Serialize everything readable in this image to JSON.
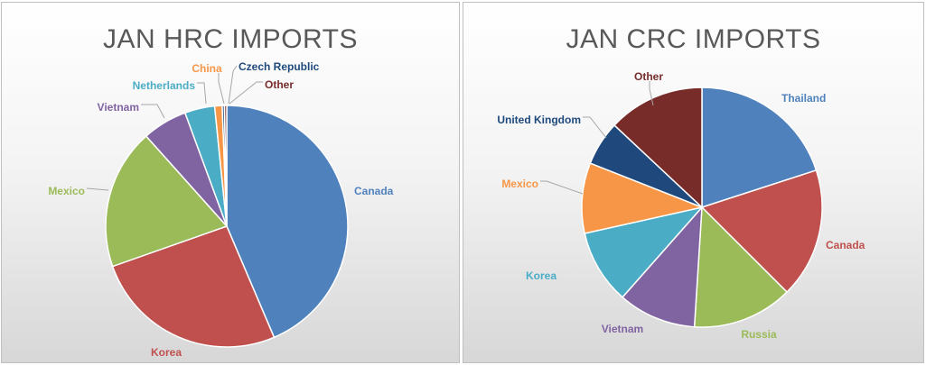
{
  "chart_data": [
    {
      "type": "pie",
      "title": "JAN HRC IMPORTS",
      "categories": [
        "Canada",
        "Korea",
        "Mexico",
        "Vietnam",
        "Netherlands",
        "China",
        "Czech Republic",
        "Other"
      ],
      "values": [
        43.6,
        26.0,
        18.8,
        6.0,
        4.0,
        1.0,
        0.3,
        0.3
      ],
      "colors": [
        "#4f81bd",
        "#c0504d",
        "#9bbb59",
        "#8064a2",
        "#4bacc6",
        "#f79646",
        "#1f497d",
        "#772c2a"
      ],
      "legend": "none"
    },
    {
      "type": "pie",
      "title": "JAN CRC IMPORTS",
      "categories": [
        "Thailand",
        "Canada",
        "Russia",
        "Vietnam",
        "Korea",
        "Mexico",
        "United Kingdom",
        "Other"
      ],
      "values": [
        20.0,
        17.5,
        13.5,
        10.5,
        10.0,
        9.5,
        6.0,
        13.0
      ],
      "colors": [
        "#4f81bd",
        "#c0504d",
        "#9bbb59",
        "#8064a2",
        "#4bacc6",
        "#f79646",
        "#1f497d",
        "#772c2a"
      ],
      "legend": "none"
    }
  ]
}
